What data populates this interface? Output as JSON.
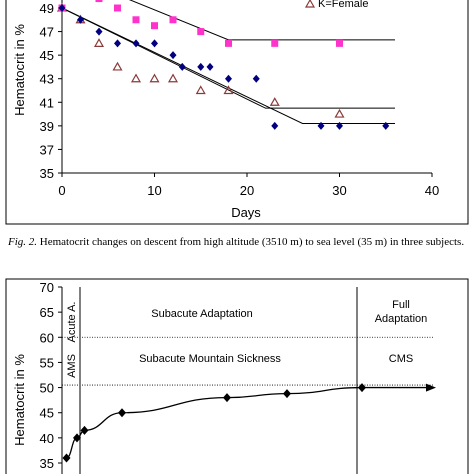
{
  "figure2": {
    "caption_label": "Fig. 2.",
    "caption_text": "Hematocrit changes on descent from high altitude (3510 m) to sea level (35 m) in three subjects."
  },
  "chart_data": [
    {
      "type": "scatter",
      "title": "",
      "xlabel": "Days",
      "ylabel": "Hematocrit in %",
      "xlim": [
        0,
        40
      ],
      "ylim": [
        35,
        49
      ],
      "x_ticks": [
        "0",
        "10",
        "20",
        "30",
        "40"
      ],
      "y_ticks": [
        "35",
        "37",
        "39",
        "41",
        "43",
        "45",
        "47",
        "49"
      ],
      "grid": false,
      "legend": {
        "placement": "top-right",
        "entries": [
          "K=Female"
        ]
      },
      "series": [
        {
          "name": "K=Female",
          "marker": "triangle-open",
          "color": "#8B3A3A",
          "points": [
            [
              0,
              49
            ],
            [
              2,
              48
            ],
            [
              4,
              46
            ],
            [
              6,
              44
            ],
            [
              8,
              43
            ],
            [
              10,
              43
            ],
            [
              12,
              43
            ],
            [
              15,
              42
            ],
            [
              18,
              42
            ],
            [
              23,
              41
            ],
            [
              30,
              40
            ]
          ]
        },
        {
          "marker": "square",
          "color": "#FF33CC",
          "points": [
            [
              0,
              49
            ],
            [
              4,
              49.8
            ],
            [
              6,
              49
            ],
            [
              8,
              48
            ],
            [
              10,
              47.5
            ],
            [
              12,
              48
            ],
            [
              15,
              47
            ],
            [
              18,
              46
            ],
            [
              23,
              46
            ],
            [
              30,
              46
            ]
          ]
        },
        {
          "marker": "diamond",
          "color": "#000080",
          "points": [
            [
              0,
              49
            ],
            [
              2,
              48
            ],
            [
              4,
              47
            ],
            [
              6,
              46
            ],
            [
              8,
              46
            ],
            [
              10,
              46
            ],
            [
              12,
              45
            ],
            [
              13,
              44
            ],
            [
              15,
              44
            ],
            [
              16,
              44
            ],
            [
              18,
              43
            ],
            [
              21,
              43
            ],
            [
              23,
              39
            ],
            [
              28,
              39
            ],
            [
              30,
              39
            ],
            [
              35,
              39
            ]
          ]
        }
      ],
      "trend_lines": [
        {
          "color": "#000000",
          "points": [
            [
              7,
              49.8
            ],
            [
              18,
              46.3
            ],
            [
              36,
              46.3
            ]
          ]
        },
        {
          "color": "#000000",
          "points": [
            [
              0,
              49
            ],
            [
              22,
              40.5
            ],
            [
              36,
              40.5
            ]
          ]
        },
        {
          "color": "#000000",
          "points": [
            [
              0,
              49
            ],
            [
              26,
              39.2
            ],
            [
              36,
              39.2
            ]
          ]
        }
      ]
    },
    {
      "type": "line",
      "title": "",
      "xlabel": "",
      "ylabel": "Hematocrit in %",
      "ylim": [
        35,
        70
      ],
      "y_ticks": [
        "35",
        "40",
        "45",
        "50",
        "55",
        "60",
        "65",
        "70"
      ],
      "grid": false,
      "x_axis_arrow": true,
      "x": [
        0.3,
        1,
        1.5,
        4,
        11,
        15,
        20
      ],
      "values": [
        36,
        40,
        41.5,
        45,
        48,
        48.8,
        50
      ],
      "reference_lines": [
        60,
        50.5
      ],
      "region_labels": {
        "acute": "Acute A.",
        "ams": "AMS",
        "subacute_adaptation": "Subacute Adaptation",
        "subacute_sickness": "Subacute Mountain Sickness",
        "full_adaptation_line1": "Full",
        "full_adaptation_line2": "Adaptation",
        "cms": "CMS"
      }
    }
  ]
}
